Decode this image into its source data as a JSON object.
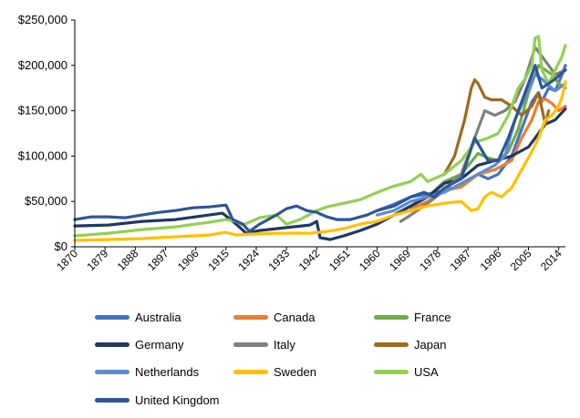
{
  "chart_data": {
    "type": "line",
    "title": "",
    "xlabel": "",
    "ylabel": "",
    "xlim": [
      1870,
      2016
    ],
    "ylim": [
      0,
      250000
    ],
    "y_ticks": [
      0,
      50000,
      100000,
      150000,
      200000,
      250000
    ],
    "y_tick_labels": [
      "$0",
      "$50,000",
      "$100,000",
      "$150,000",
      "$200,000",
      "$250,000"
    ],
    "x_ticks": [
      1870,
      1879,
      1888,
      1897,
      1906,
      1915,
      1924,
      1933,
      1942,
      1951,
      1960,
      1969,
      1978,
      1987,
      1996,
      2005,
      2014
    ],
    "x_tick_labels": [
      "1870",
      "1879",
      "1888",
      "1897",
      "1906",
      "1915",
      "1924",
      "1933",
      "1942",
      "1951",
      "1960",
      "1969",
      "1978",
      "1987",
      "1996",
      "2005",
      "2014"
    ],
    "grid": false,
    "legend_position": "bottom",
    "series": [
      {
        "name": "Australia",
        "color": "#4472C4",
        "points": [
          [
            1960,
            40000
          ],
          [
            1965,
            47000
          ],
          [
            1970,
            55000
          ],
          [
            1975,
            58000
          ],
          [
            1980,
            62000
          ],
          [
            1985,
            68000
          ],
          [
            1990,
            80000
          ],
          [
            1993,
            75000
          ],
          [
            1996,
            80000
          ],
          [
            2000,
            100000
          ],
          [
            2003,
            130000
          ],
          [
            2006,
            160000
          ],
          [
            2008,
            170000
          ],
          [
            2009,
            160000
          ],
          [
            2011,
            175000
          ],
          [
            2013,
            172000
          ],
          [
            2015,
            190000
          ],
          [
            2016,
            200000
          ]
        ]
      },
      {
        "name": "Canada",
        "color": "#ED7D31",
        "points": [
          [
            1970,
            42000
          ],
          [
            1975,
            50000
          ],
          [
            1980,
            62000
          ],
          [
            1985,
            66000
          ],
          [
            1990,
            80000
          ],
          [
            1995,
            85000
          ],
          [
            2000,
            95000
          ],
          [
            2003,
            120000
          ],
          [
            2006,
            140000
          ],
          [
            2008,
            160000
          ],
          [
            2010,
            163000
          ],
          [
            2012,
            158000
          ],
          [
            2014,
            150000
          ],
          [
            2016,
            155000
          ]
        ]
      },
      {
        "name": "France",
        "color": "#70AD47",
        "points": [
          [
            1965,
            35000
          ],
          [
            1970,
            45000
          ],
          [
            1975,
            55000
          ],
          [
            1980,
            72000
          ],
          [
            1985,
            80000
          ],
          [
            1990,
            103000
          ],
          [
            1993,
            98000
          ],
          [
            1996,
            95000
          ],
          [
            1999,
            105000
          ],
          [
            2002,
            130000
          ],
          [
            2005,
            170000
          ],
          [
            2008,
            200000
          ],
          [
            2010,
            195000
          ],
          [
            2012,
            190000
          ],
          [
            2014,
            180000
          ],
          [
            2016,
            175000
          ]
        ]
      },
      {
        "name": "Germany",
        "color": "#203864",
        "points": [
          [
            1870,
            23000
          ],
          [
            1880,
            24000
          ],
          [
            1890,
            28000
          ],
          [
            1900,
            30000
          ],
          [
            1910,
            35000
          ],
          [
            1914,
            37000
          ],
          [
            1918,
            25000
          ],
          [
            1921,
            15000
          ],
          [
            1925,
            18000
          ],
          [
            1930,
            20000
          ],
          [
            1935,
            22000
          ],
          [
            1940,
            24000
          ],
          [
            1942,
            28000
          ],
          [
            1943,
            10000
          ],
          [
            1946,
            8000
          ],
          [
            1950,
            12000
          ],
          [
            1955,
            18000
          ],
          [
            1960,
            25000
          ],
          [
            1965,
            35000
          ],
          [
            1970,
            45000
          ],
          [
            1975,
            55000
          ],
          [
            1980,
            70000
          ],
          [
            1985,
            75000
          ],
          [
            1990,
            90000
          ],
          [
            1995,
            95000
          ],
          [
            2000,
            100000
          ],
          [
            2005,
            110000
          ],
          [
            2010,
            135000
          ],
          [
            2013,
            140000
          ],
          [
            2016,
            152000
          ]
        ]
      },
      {
        "name": "Italy",
        "color": "#7F7F7F",
        "points": [
          [
            1967,
            28000
          ],
          [
            1970,
            35000
          ],
          [
            1975,
            48000
          ],
          [
            1980,
            62000
          ],
          [
            1985,
            80000
          ],
          [
            1990,
            130000
          ],
          [
            1992,
            150000
          ],
          [
            1995,
            145000
          ],
          [
            1998,
            150000
          ],
          [
            2001,
            160000
          ],
          [
            2004,
            185000
          ],
          [
            2007,
            220000
          ],
          [
            2009,
            210000
          ],
          [
            2011,
            200000
          ],
          [
            2013,
            190000
          ],
          [
            2016,
            195000
          ]
        ]
      },
      {
        "name": "Japan",
        "color": "#9E6A1E",
        "points": [
          [
            1980,
            80000
          ],
          [
            1983,
            100000
          ],
          [
            1986,
            140000
          ],
          [
            1988,
            175000
          ],
          [
            1989,
            184000
          ],
          [
            1990,
            180000
          ],
          [
            1992,
            165000
          ],
          [
            1994,
            162000
          ],
          [
            1997,
            162000
          ],
          [
            2000,
            155000
          ],
          [
            2003,
            145000
          ],
          [
            2006,
            155000
          ],
          [
            2008,
            170000
          ],
          [
            2010,
            135000
          ],
          [
            2011,
            150000
          ]
        ]
      },
      {
        "name": "Netherlands",
        "color": "#5B8DD0",
        "points": [
          [
            1960,
            35000
          ],
          [
            1965,
            40000
          ],
          [
            1970,
            50000
          ],
          [
            1975,
            55000
          ],
          [
            1980,
            60000
          ],
          [
            1985,
            70000
          ],
          [
            1990,
            80000
          ],
          [
            1995,
            90000
          ],
          [
            1998,
            100000
          ],
          [
            2001,
            140000
          ],
          [
            2004,
            165000
          ],
          [
            2007,
            190000
          ],
          [
            2009,
            185000
          ],
          [
            2011,
            178000
          ],
          [
            2013,
            172000
          ],
          [
            2016,
            180000
          ]
        ]
      },
      {
        "name": "Sweden",
        "color": "#FFC000",
        "points": [
          [
            1870,
            7000
          ],
          [
            1880,
            8000
          ],
          [
            1890,
            9000
          ],
          [
            1900,
            11000
          ],
          [
            1910,
            13000
          ],
          [
            1915,
            16000
          ],
          [
            1918,
            13000
          ],
          [
            1922,
            14000
          ],
          [
            1930,
            15000
          ],
          [
            1940,
            15000
          ],
          [
            1945,
            17000
          ],
          [
            1950,
            20000
          ],
          [
            1955,
            25000
          ],
          [
            1960,
            28000
          ],
          [
            1965,
            35000
          ],
          [
            1970,
            40000
          ],
          [
            1975,
            45000
          ],
          [
            1980,
            48000
          ],
          [
            1985,
            50000
          ],
          [
            1988,
            40000
          ],
          [
            1990,
            42000
          ],
          [
            1992,
            55000
          ],
          [
            1994,
            60000
          ],
          [
            1997,
            55000
          ],
          [
            2000,
            65000
          ],
          [
            2003,
            85000
          ],
          [
            2006,
            105000
          ],
          [
            2008,
            120000
          ],
          [
            2010,
            140000
          ],
          [
            2012,
            145000
          ],
          [
            2014,
            155000
          ],
          [
            2015,
            165000
          ],
          [
            2016,
            182000
          ]
        ]
      },
      {
        "name": "USA",
        "color": "#92D050",
        "points": [
          [
            1870,
            12000
          ],
          [
            1880,
            15000
          ],
          [
            1890,
            19000
          ],
          [
            1900,
            22000
          ],
          [
            1910,
            27000
          ],
          [
            1915,
            30000
          ],
          [
            1918,
            28000
          ],
          [
            1920,
            24000
          ],
          [
            1925,
            32000
          ],
          [
            1930,
            35000
          ],
          [
            1933,
            25000
          ],
          [
            1937,
            30000
          ],
          [
            1942,
            40000
          ],
          [
            1945,
            44000
          ],
          [
            1950,
            48000
          ],
          [
            1955,
            52000
          ],
          [
            1960,
            60000
          ],
          [
            1965,
            67000
          ],
          [
            1970,
            72000
          ],
          [
            1973,
            80000
          ],
          [
            1975,
            72000
          ],
          [
            1980,
            80000
          ],
          [
            1985,
            95000
          ],
          [
            1989,
            115000
          ],
          [
            1993,
            120000
          ],
          [
            1996,
            125000
          ],
          [
            1999,
            145000
          ],
          [
            2002,
            175000
          ],
          [
            2004,
            185000
          ],
          [
            2006,
            200000
          ],
          [
            2007,
            230000
          ],
          [
            2008,
            232000
          ],
          [
            2009,
            195000
          ],
          [
            2011,
            180000
          ],
          [
            2013,
            195000
          ],
          [
            2015,
            210000
          ],
          [
            2016,
            222000
          ]
        ]
      },
      {
        "name": "United Kingdom",
        "color": "#2F5597",
        "points": [
          [
            1870,
            30000
          ],
          [
            1875,
            33000
          ],
          [
            1880,
            33000
          ],
          [
            1885,
            32000
          ],
          [
            1890,
            35000
          ],
          [
            1895,
            38000
          ],
          [
            1900,
            40000
          ],
          [
            1905,
            43000
          ],
          [
            1910,
            44000
          ],
          [
            1915,
            46000
          ],
          [
            1917,
            30000
          ],
          [
            1920,
            25000
          ],
          [
            1922,
            17000
          ],
          [
            1925,
            25000
          ],
          [
            1930,
            35000
          ],
          [
            1933,
            42000
          ],
          [
            1936,
            45000
          ],
          [
            1939,
            40000
          ],
          [
            1942,
            38000
          ],
          [
            1945,
            33000
          ],
          [
            1948,
            30000
          ],
          [
            1952,
            30000
          ],
          [
            1957,
            35000
          ],
          [
            1960,
            40000
          ],
          [
            1965,
            45000
          ],
          [
            1970,
            55000
          ],
          [
            1974,
            60000
          ],
          [
            1977,
            55000
          ],
          [
            1980,
            65000
          ],
          [
            1985,
            75000
          ],
          [
            1989,
            120000
          ],
          [
            1993,
            95000
          ],
          [
            1996,
            95000
          ],
          [
            1999,
            120000
          ],
          [
            2002,
            150000
          ],
          [
            2005,
            180000
          ],
          [
            2007,
            200000
          ],
          [
            2009,
            175000
          ],
          [
            2011,
            180000
          ],
          [
            2013,
            185000
          ],
          [
            2016,
            195000
          ]
        ]
      }
    ]
  }
}
